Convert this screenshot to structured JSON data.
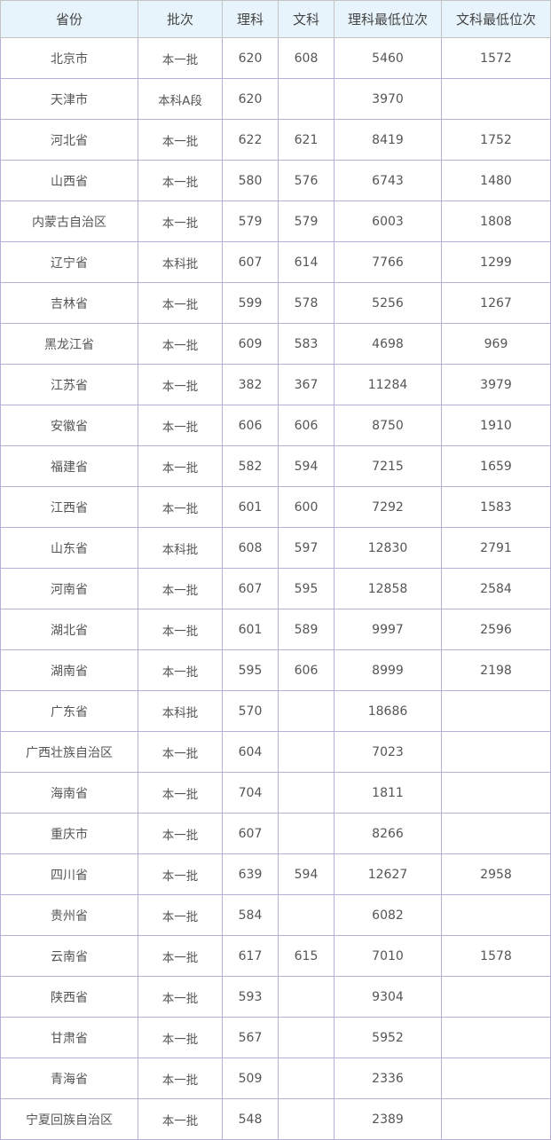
{
  "table": {
    "headers": [
      "省份",
      "批次",
      "理科",
      "文科",
      "理科最低位次",
      "文科最低位次"
    ],
    "rows": [
      [
        "北京市",
        "本一批",
        "620",
        "608",
        "5460",
        "1572"
      ],
      [
        "天津市",
        "本科A段",
        "620",
        "",
        "3970",
        ""
      ],
      [
        "河北省",
        "本一批",
        "622",
        "621",
        "8419",
        "1752"
      ],
      [
        "山西省",
        "本一批",
        "580",
        "576",
        "6743",
        "1480"
      ],
      [
        "内蒙古自治区",
        "本一批",
        "579",
        "579",
        "6003",
        "1808"
      ],
      [
        "辽宁省",
        "本科批",
        "607",
        "614",
        "7766",
        "1299"
      ],
      [
        "吉林省",
        "本一批",
        "599",
        "578",
        "5256",
        "1267"
      ],
      [
        "黑龙江省",
        "本一批",
        "609",
        "583",
        "4698",
        "969"
      ],
      [
        "江苏省",
        "本一批",
        "382",
        "367",
        "11284",
        "3979"
      ],
      [
        "安徽省",
        "本一批",
        "606",
        "606",
        "8750",
        "1910"
      ],
      [
        "福建省",
        "本一批",
        "582",
        "594",
        "7215",
        "1659"
      ],
      [
        "江西省",
        "本一批",
        "601",
        "600",
        "7292",
        "1583"
      ],
      [
        "山东省",
        "本科批",
        "608",
        "597",
        "12830",
        "2791"
      ],
      [
        "河南省",
        "本一批",
        "607",
        "595",
        "12858",
        "2584"
      ],
      [
        "湖北省",
        "本一批",
        "601",
        "589",
        "9997",
        "2596"
      ],
      [
        "湖南省",
        "本一批",
        "595",
        "606",
        "8999",
        "2198"
      ],
      [
        "广东省",
        "本科批",
        "570",
        "",
        "18686",
        ""
      ],
      [
        "广西壮族自治区",
        "本一批",
        "604",
        "",
        "7023",
        ""
      ],
      [
        "海南省",
        "本一批",
        "704",
        "",
        "1811",
        ""
      ],
      [
        "重庆市",
        "本一批",
        "607",
        "",
        "8266",
        ""
      ],
      [
        "四川省",
        "本一批",
        "639",
        "594",
        "12627",
        "2958"
      ],
      [
        "贵州省",
        "本一批",
        "584",
        "",
        "6082",
        ""
      ],
      [
        "云南省",
        "本一批",
        "617",
        "615",
        "7010",
        "1578"
      ],
      [
        "陕西省",
        "本一批",
        "593",
        "",
        "9304",
        ""
      ],
      [
        "甘肃省",
        "本一批",
        "567",
        "",
        "5952",
        ""
      ],
      [
        "青海省",
        "本一批",
        "509",
        "",
        "2336",
        ""
      ],
      [
        "宁夏回族自治区",
        "本一批",
        "548",
        "",
        "2389",
        ""
      ]
    ]
  },
  "colors": {
    "header_bg": "#e8f4fc",
    "border": "#b6aed4",
    "text": "#555555"
  }
}
